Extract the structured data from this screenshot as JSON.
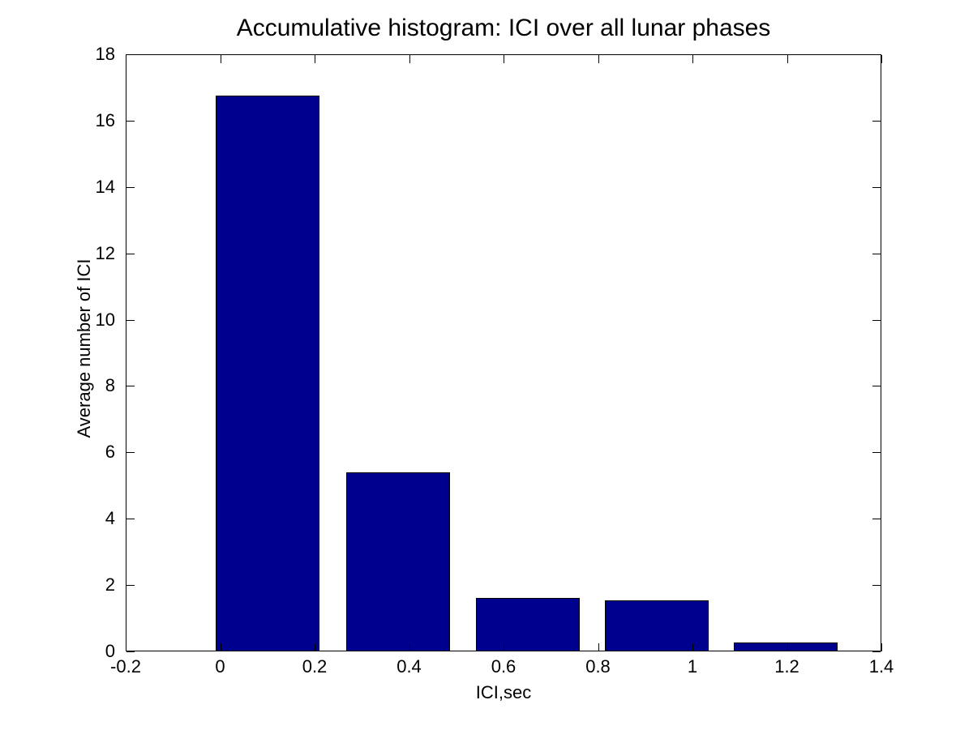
{
  "chart_data": {
    "type": "bar",
    "title": "Accumulative histogram: ICI over all lunar phases",
    "xlabel": "ICI,sec",
    "ylabel": "Average number of ICI",
    "xlim": [
      -0.2,
      1.4
    ],
    "ylim": [
      0,
      18
    ],
    "x_tick_values": [
      -0.2,
      0,
      0.2,
      0.4,
      0.6,
      0.8,
      1,
      1.2,
      1.4
    ],
    "x_tick_labels": [
      "-0.2",
      "0",
      "0.2",
      "0.4",
      "0.6",
      "0.8",
      "1",
      "1.2",
      "1.4"
    ],
    "y_tick_values": [
      0,
      2,
      4,
      6,
      8,
      10,
      12,
      14,
      16,
      18
    ],
    "y_tick_labels": [
      "0",
      "2",
      "4",
      "6",
      "8",
      "10",
      "12",
      "14",
      "16",
      "18"
    ],
    "bar_width": 0.22,
    "bars": [
      {
        "x": 0.1,
        "height": 16.75
      },
      {
        "x": 0.3775,
        "height": 5.4
      },
      {
        "x": 0.651,
        "height": 1.62
      },
      {
        "x": 0.9245,
        "height": 1.55
      },
      {
        "x": 1.1975,
        "height": 0.27
      }
    ],
    "grid": false,
    "legend": null,
    "colors": {
      "bar_fill": "#00008F",
      "bar_edge": "#000000",
      "axis": "#000000",
      "background": "#FFFFFF",
      "text": "#000000"
    }
  }
}
